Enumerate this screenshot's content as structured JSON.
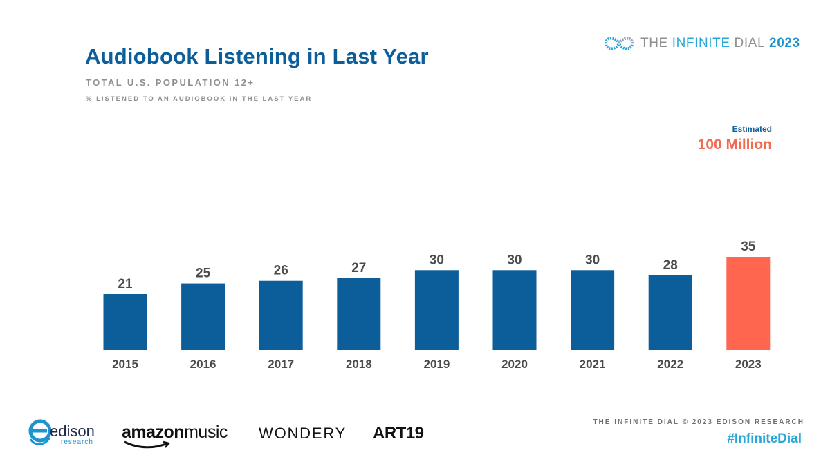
{
  "header": {
    "title": "Audiobook Listening in Last Year",
    "subtitle": "TOTAL U.S. POPULATION 12+",
    "metric": "% LISTENED TO AN AUDIOBOOK IN THE LAST YEAR"
  },
  "brand": {
    "the": "THE ",
    "infinite": "INFINITE ",
    "dial": "DIAL",
    "year": " 2023",
    "icon": "infinity-icon"
  },
  "estimate": {
    "label": "Estimated",
    "value": "100 Million"
  },
  "chart_data": {
    "type": "bar",
    "categories": [
      "2015",
      "2016",
      "2017",
      "2018",
      "2019",
      "2020",
      "2021",
      "2022",
      "2023"
    ],
    "values": [
      21,
      25,
      26,
      27,
      30,
      30,
      30,
      28,
      35
    ],
    "ylim": [
      0,
      35
    ],
    "bar_color": "#0c5e9a",
    "highlight_color": "#ff6650",
    "highlight_category": "2023",
    "grid": false,
    "legend": "none"
  },
  "footer": {
    "credit": "THE INFINITE DIAL © 2023 EDISON RESEARCH",
    "hashtag": "#InfiniteDial"
  },
  "sponsors": {
    "edison_word": "edison",
    "edison_sub": "research",
    "amazon": "amazon",
    "music": "music",
    "wondery": "WONDERY",
    "art19": "ART19"
  }
}
